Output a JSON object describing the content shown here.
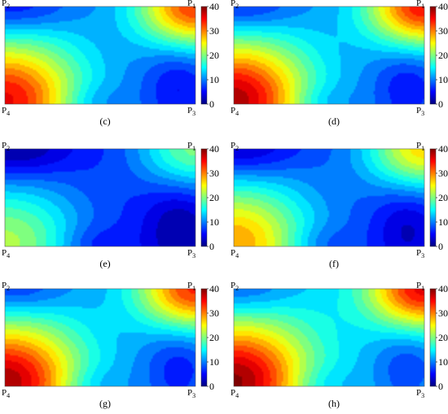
{
  "figure": {
    "panels": [
      {
        "caption": "(c)",
        "hot": {
          "p1": 0.95,
          "p4": 0.92,
          "mid": 0.3
        }
      },
      {
        "caption": "(d)",
        "hot": {
          "p1": 1.0,
          "p4": 1.0,
          "mid": 0.32
        }
      },
      {
        "caption": "(e)",
        "hot": {
          "p1": 0.55,
          "p4": 0.55,
          "mid": 0.16
        }
      },
      {
        "caption": "(f)",
        "hot": {
          "p1": 0.75,
          "p4": 0.75,
          "mid": 0.22
        }
      },
      {
        "caption": "(g)",
        "hot": {
          "p1": 0.95,
          "p4": 1.0,
          "mid": 0.34
        }
      },
      {
        "caption": "(h)",
        "hot": {
          "p1": 1.0,
          "p4": 1.0,
          "mid": 0.4
        }
      }
    ],
    "corner_labels": {
      "p1": {
        "base": "P",
        "sub": "1"
      },
      "p2": {
        "base": "P",
        "sub": "2"
      },
      "p3": {
        "base": "P",
        "sub": "3"
      },
      "p4": {
        "base": "P",
        "sub": "4"
      }
    },
    "colorbar": {
      "min": 0,
      "max": 40,
      "ticks": [
        "0",
        "10",
        "20",
        "30",
        "40"
      ],
      "colormap": "jet",
      "levels": 20
    },
    "colors": {
      "jet_stops": [
        "#00007f",
        "#0000ff",
        "#007fff",
        "#00ffff",
        "#7fff7f",
        "#ffff00",
        "#ff7f00",
        "#ff0000",
        "#7f0000"
      ]
    }
  }
}
